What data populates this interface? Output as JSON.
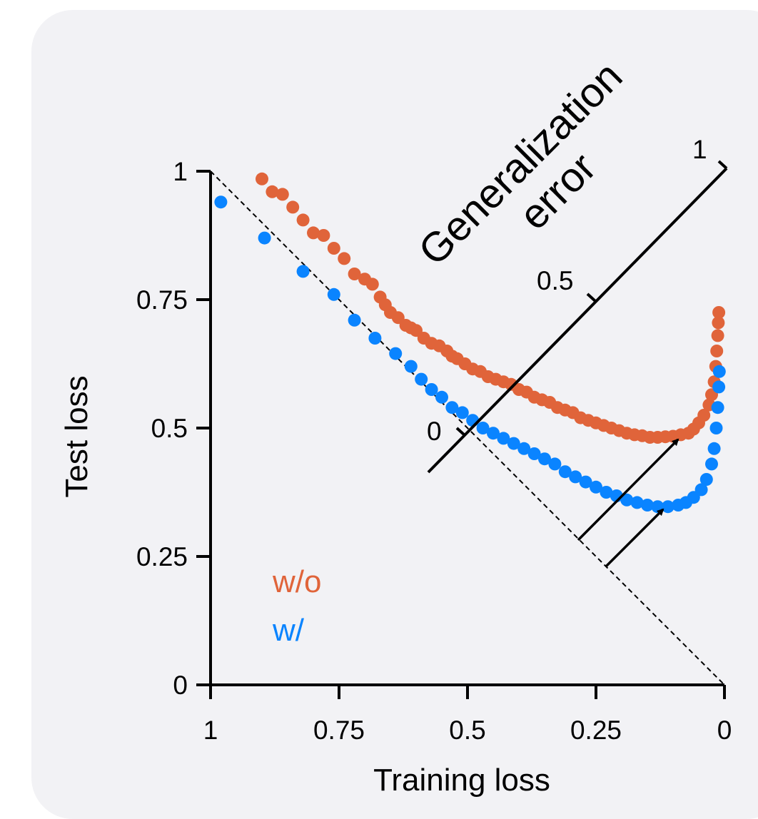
{
  "chart_data": {
    "type": "scatter",
    "xlabel": "Training loss",
    "ylabel": "Test loss",
    "xlim": [
      1,
      0
    ],
    "ylim": [
      0,
      1
    ],
    "x_reversed": true,
    "x_ticks": [
      {
        "value": 1,
        "label": "1"
      },
      {
        "value": 0.75,
        "label": "0.75"
      },
      {
        "value": 0.5,
        "label": "0.5"
      },
      {
        "value": 0.25,
        "label": "0.25"
      },
      {
        "value": 0,
        "label": "0"
      }
    ],
    "y_ticks": [
      {
        "value": 1,
        "label": "1"
      },
      {
        "value": 0.75,
        "label": "0.75"
      },
      {
        "value": 0.5,
        "label": "0.5"
      },
      {
        "value": 0.25,
        "label": "0.25"
      },
      {
        "value": 0,
        "label": "0"
      }
    ],
    "reference_line": {
      "style": "dashed",
      "from": [
        1,
        1
      ],
      "to": [
        0,
        0
      ]
    },
    "grid": false,
    "legend_position": "bottom-left",
    "series": [
      {
        "name": "w/o",
        "color": "#e0643a",
        "points": [
          [
            0.9,
            0.985
          ],
          [
            0.88,
            0.96
          ],
          [
            0.86,
            0.955
          ],
          [
            0.84,
            0.93
          ],
          [
            0.82,
            0.905
          ],
          [
            0.8,
            0.88
          ],
          [
            0.78,
            0.875
          ],
          [
            0.76,
            0.85
          ],
          [
            0.74,
            0.83
          ],
          [
            0.72,
            0.8
          ],
          [
            0.7,
            0.79
          ],
          [
            0.685,
            0.78
          ],
          [
            0.67,
            0.755
          ],
          [
            0.66,
            0.74
          ],
          [
            0.65,
            0.725
          ],
          [
            0.635,
            0.715
          ],
          [
            0.62,
            0.7
          ],
          [
            0.61,
            0.695
          ],
          [
            0.6,
            0.69
          ],
          [
            0.585,
            0.675
          ],
          [
            0.57,
            0.665
          ],
          [
            0.555,
            0.66
          ],
          [
            0.54,
            0.65
          ],
          [
            0.53,
            0.64
          ],
          [
            0.52,
            0.635
          ],
          [
            0.505,
            0.625
          ],
          [
            0.49,
            0.615
          ],
          [
            0.475,
            0.61
          ],
          [
            0.46,
            0.6
          ],
          [
            0.445,
            0.595
          ],
          [
            0.43,
            0.59
          ],
          [
            0.415,
            0.585
          ],
          [
            0.4,
            0.575
          ],
          [
            0.385,
            0.57
          ],
          [
            0.37,
            0.56
          ],
          [
            0.355,
            0.555
          ],
          [
            0.34,
            0.55
          ],
          [
            0.325,
            0.54
          ],
          [
            0.31,
            0.535
          ],
          [
            0.295,
            0.53
          ],
          [
            0.28,
            0.52
          ],
          [
            0.265,
            0.515
          ],
          [
            0.25,
            0.51
          ],
          [
            0.235,
            0.505
          ],
          [
            0.22,
            0.5
          ],
          [
            0.205,
            0.495
          ],
          [
            0.19,
            0.49
          ],
          [
            0.175,
            0.487
          ],
          [
            0.16,
            0.485
          ],
          [
            0.145,
            0.482
          ],
          [
            0.13,
            0.482
          ],
          [
            0.115,
            0.483
          ],
          [
            0.1,
            0.484
          ],
          [
            0.085,
            0.487
          ],
          [
            0.07,
            0.49
          ],
          [
            0.06,
            0.498
          ],
          [
            0.05,
            0.51
          ],
          [
            0.04,
            0.525
          ],
          [
            0.03,
            0.545
          ],
          [
            0.025,
            0.565
          ],
          [
            0.02,
            0.59
          ],
          [
            0.017,
            0.62
          ],
          [
            0.015,
            0.65
          ],
          [
            0.013,
            0.68
          ],
          [
            0.012,
            0.705
          ],
          [
            0.011,
            0.725
          ]
        ]
      },
      {
        "name": "w/",
        "color": "#0a84ff",
        "points": [
          [
            0.98,
            0.94
          ],
          [
            0.895,
            0.87
          ],
          [
            0.82,
            0.805
          ],
          [
            0.76,
            0.76
          ],
          [
            0.72,
            0.71
          ],
          [
            0.68,
            0.675
          ],
          [
            0.64,
            0.645
          ],
          [
            0.61,
            0.62
          ],
          [
            0.59,
            0.595
          ],
          [
            0.57,
            0.575
          ],
          [
            0.55,
            0.56
          ],
          [
            0.53,
            0.54
          ],
          [
            0.51,
            0.53
          ],
          [
            0.49,
            0.515
          ],
          [
            0.47,
            0.5
          ],
          [
            0.45,
            0.49
          ],
          [
            0.43,
            0.48
          ],
          [
            0.41,
            0.47
          ],
          [
            0.39,
            0.46
          ],
          [
            0.37,
            0.45
          ],
          [
            0.35,
            0.44
          ],
          [
            0.33,
            0.43
          ],
          [
            0.31,
            0.415
          ],
          [
            0.29,
            0.405
          ],
          [
            0.27,
            0.395
          ],
          [
            0.25,
            0.385
          ],
          [
            0.23,
            0.375
          ],
          [
            0.21,
            0.368
          ],
          [
            0.19,
            0.36
          ],
          [
            0.17,
            0.355
          ],
          [
            0.15,
            0.35
          ],
          [
            0.13,
            0.347
          ],
          [
            0.11,
            0.347
          ],
          [
            0.09,
            0.35
          ],
          [
            0.075,
            0.355
          ],
          [
            0.06,
            0.365
          ],
          [
            0.045,
            0.38
          ],
          [
            0.035,
            0.4
          ],
          [
            0.025,
            0.43
          ],
          [
            0.02,
            0.46
          ],
          [
            0.016,
            0.5
          ],
          [
            0.013,
            0.54
          ],
          [
            0.011,
            0.58
          ],
          [
            0.01,
            0.61
          ]
        ]
      }
    ],
    "generalization_axis": {
      "title_line1": "Generalization",
      "title_line2": "error",
      "ticks": [
        {
          "value": 0,
          "label": "0"
        },
        {
          "value": 0.5,
          "label": "0.5"
        },
        {
          "value": 1,
          "label": "1"
        }
      ]
    }
  }
}
